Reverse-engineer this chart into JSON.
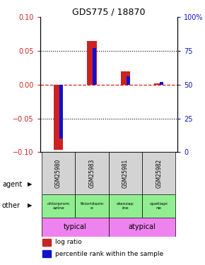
{
  "title": "GDS775 / 18870",
  "samples": [
    "GSM25980",
    "GSM25983",
    "GSM25981",
    "GSM25982"
  ],
  "log_ratio": [
    -0.097,
    0.065,
    0.02,
    0.002
  ],
  "percentile_rank": [
    10,
    77,
    56,
    52
  ],
  "ylim_left": [
    -0.1,
    0.1
  ],
  "ylim_right": [
    0,
    100
  ],
  "left_ticks": [
    -0.1,
    -0.05,
    0,
    0.05,
    0.1
  ],
  "right_ticks": [
    0,
    25,
    50,
    75,
    100
  ],
  "right_tick_labels": [
    "0",
    "25",
    "50",
    "75",
    "100%"
  ],
  "agents": [
    "chlorprom\nazine",
    "thioridazin\ne",
    "olanzap\nine",
    "quetiapi\nne"
  ],
  "agent_color": "#90ee90",
  "typical_color": "#ee82ee",
  "atypical_color": "#ee82ee",
  "bar_bg_color": "#d3d3d3",
  "typical_label": "typical",
  "atypical_label": "atypical",
  "red_color": "#cc2222",
  "blue_color": "#1111cc",
  "zero_line_color": "#cc2222"
}
